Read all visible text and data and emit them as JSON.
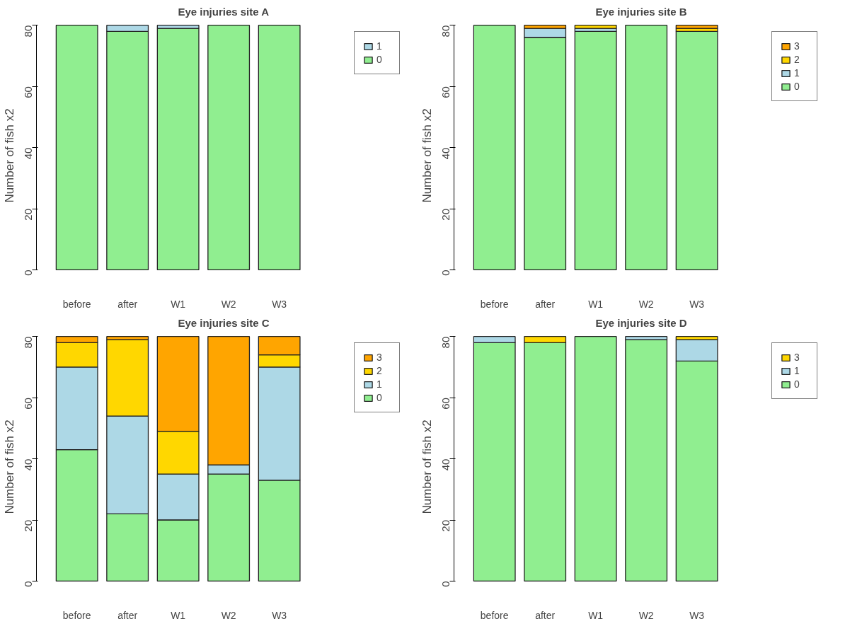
{
  "chart_data": [
    {
      "type": "bar",
      "title": "Eye injuries site A",
      "ylabel": "Number of fish x2",
      "categories": [
        "before",
        "after",
        "W1",
        "W2",
        "W3"
      ],
      "stacked": true,
      "ylim": [
        0,
        80
      ],
      "yticks": [
        0,
        20,
        40,
        60,
        80
      ],
      "legend": "top right",
      "grid": false,
      "series": [
        {
          "name": "0",
          "color": "#90ee90",
          "values": [
            80,
            78,
            79,
            80,
            80
          ]
        },
        {
          "name": "1",
          "color": "#add8e6",
          "values": [
            0,
            2,
            1,
            0,
            0
          ]
        }
      ]
    },
    {
      "type": "bar",
      "title": "Eye injuries site B",
      "ylabel": "Number of fish x2",
      "categories": [
        "before",
        "after",
        "W1",
        "W2",
        "W3"
      ],
      "stacked": true,
      "ylim": [
        0,
        80
      ],
      "yticks": [
        0,
        20,
        40,
        60,
        80
      ],
      "legend": "top right",
      "grid": false,
      "series": [
        {
          "name": "0",
          "color": "#90ee90",
          "values": [
            80,
            76,
            78,
            80,
            78
          ]
        },
        {
          "name": "1",
          "color": "#add8e6",
          "values": [
            0,
            3,
            1,
            0,
            0
          ]
        },
        {
          "name": "2",
          "color": "#ffd700",
          "values": [
            0,
            0,
            1,
            0,
            1
          ]
        },
        {
          "name": "3",
          "color": "#ffa500",
          "values": [
            0,
            1,
            0,
            0,
            1
          ]
        }
      ]
    },
    {
      "type": "bar",
      "title": "Eye injuries site C",
      "ylabel": "Number of fish x2",
      "categories": [
        "before",
        "after",
        "W1",
        "W2",
        "W3"
      ],
      "stacked": true,
      "ylim": [
        0,
        80
      ],
      "yticks": [
        0,
        20,
        40,
        60,
        80
      ],
      "legend": "top right",
      "grid": false,
      "series": [
        {
          "name": "0",
          "color": "#90ee90",
          "values": [
            43,
            22,
            20,
            35,
            33
          ]
        },
        {
          "name": "1",
          "color": "#add8e6",
          "values": [
            27,
            32,
            15,
            3,
            37
          ]
        },
        {
          "name": "2",
          "color": "#ffd700",
          "values": [
            8,
            25,
            14,
            0,
            4
          ]
        },
        {
          "name": "3",
          "color": "#ffa500",
          "values": [
            2,
            1,
            31,
            42,
            6
          ]
        }
      ]
    },
    {
      "type": "bar",
      "title": "Eye injuries site D",
      "ylabel": "Number of fish x2",
      "categories": [
        "before",
        "after",
        "W1",
        "W2",
        "W3"
      ],
      "stacked": true,
      "ylim": [
        0,
        80
      ],
      "yticks": [
        0,
        20,
        40,
        60,
        80
      ],
      "legend": "top right",
      "grid": false,
      "series": [
        {
          "name": "0",
          "color": "#90ee90",
          "values": [
            78,
            78,
            80,
            79,
            72
          ]
        },
        {
          "name": "1",
          "color": "#add8e6",
          "values": [
            2,
            0,
            0,
            1,
            7
          ]
        },
        {
          "name": "3",
          "color": "#ffd700",
          "values": [
            0,
            2,
            0,
            0,
            1
          ]
        }
      ]
    }
  ]
}
